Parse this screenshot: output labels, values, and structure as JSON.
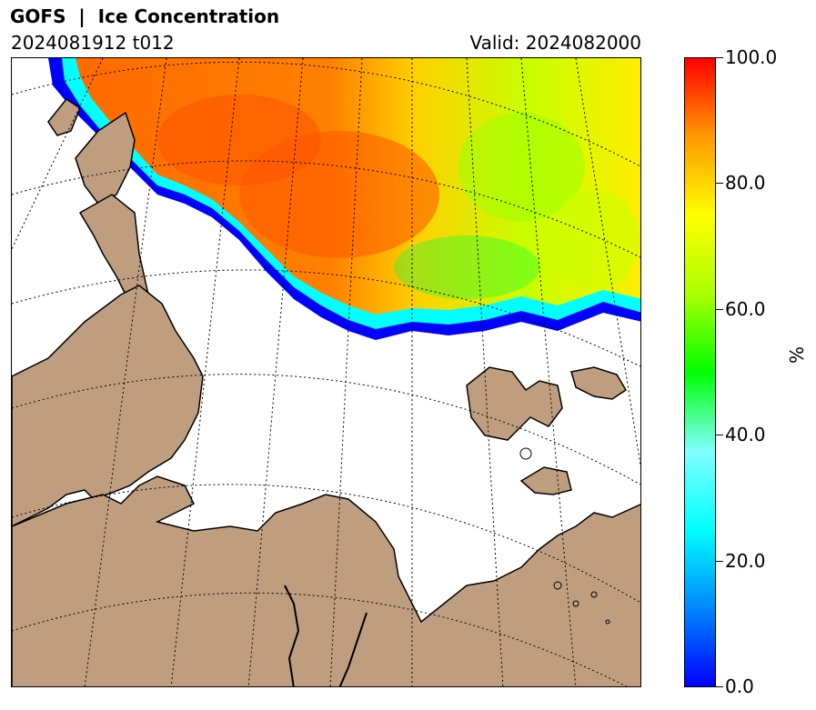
{
  "header": {
    "title": "GOFS  |  Ice Concentration",
    "run": "2024081912 t012",
    "valid": "Valid: 2024082000"
  },
  "colorbar": {
    "unit": "%",
    "ticks": [
      "100.0",
      "80.0",
      "60.0",
      "40.0",
      "20.0",
      "0.0"
    ],
    "min": 0,
    "max": 100,
    "colors": [
      "#0000ff",
      "#0088ff",
      "#00ffff",
      "#80ffff",
      "#00ff00",
      "#aaff00",
      "#ffff00",
      "#ff9900",
      "#ff0000"
    ]
  },
  "map": {
    "land_color": "#bf9e80",
    "ocean_color": "#ffffff",
    "graticule": "dotted"
  }
}
